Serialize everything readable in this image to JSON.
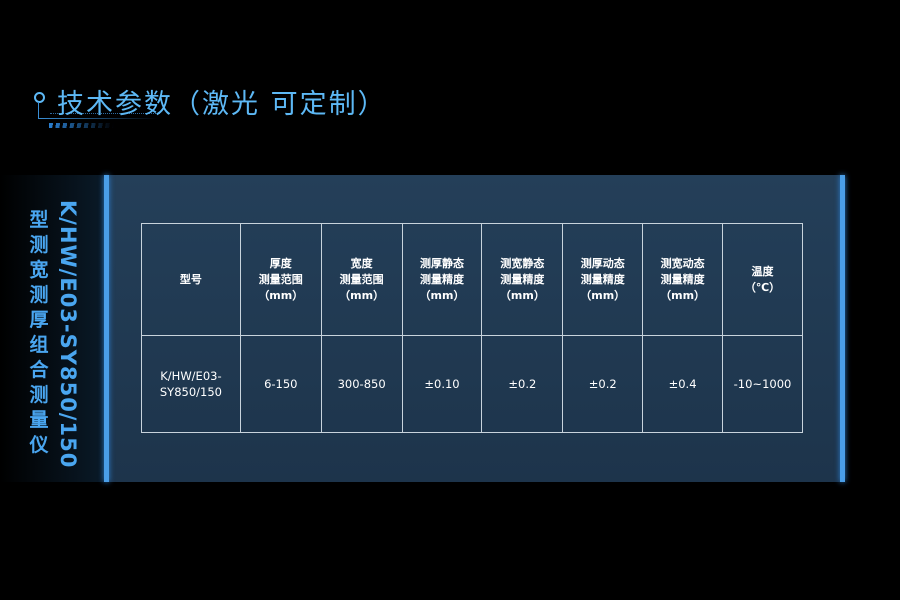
{
  "title": "技术参数（激光 可定制）",
  "side": {
    "model": "K/HW/E03-SY850/150",
    "name": "型测宽测厚组合测量仪"
  },
  "table": {
    "headers": [
      "型号",
      "厚度\n测量范围\n（mm）",
      "宽度\n测量范围\n（mm）",
      "测厚静态\n测量精度\n（mm）",
      "测宽静态\n测量精度\n（mm）",
      "测厚动态\n测量精度\n（mm）",
      "测宽动态\n测量精度\n（mm）",
      "温度\n（℃）"
    ],
    "row": [
      "K/HW/E03-\nSY850/150",
      "6-150",
      "300-850",
      "±0.10",
      "±0.2",
      "±0.2",
      "±0.4",
      "-10~1000"
    ]
  },
  "colors": {
    "accent": "#4aa6f0",
    "panel": "#1f3850"
  }
}
